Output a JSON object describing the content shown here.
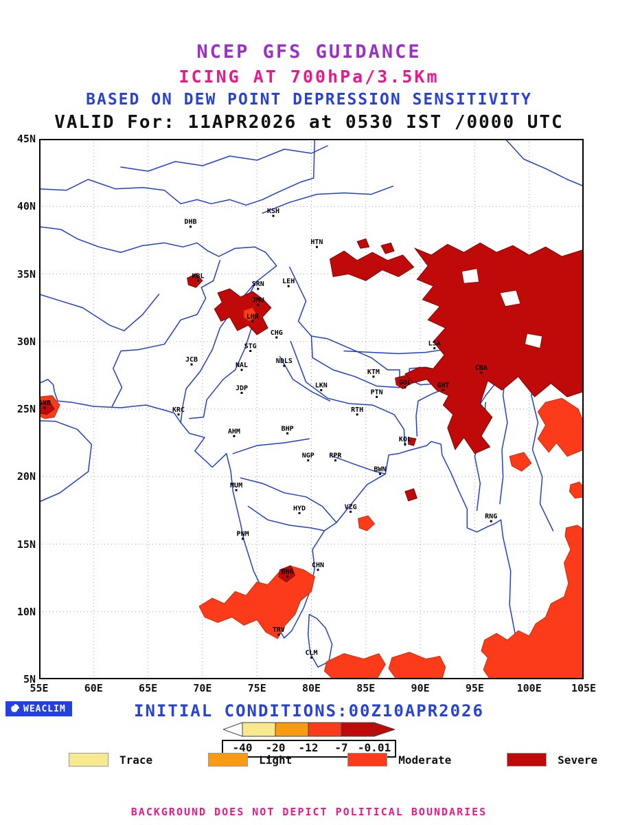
{
  "titles": {
    "line1": "NCEP GFS GUIDANCE",
    "line2": "ICING AT 700hPa/3.5Km",
    "line3": "BASED ON DEW POINT DEPRESSION SENSITIVITY",
    "line4": "VALID For: 11APR2026 at 0530 IST /0000 UTC"
  },
  "map": {
    "x_ticks": [
      "55E",
      "60E",
      "65E",
      "70E",
      "75E",
      "80E",
      "85E",
      "90E",
      "95E",
      "100E",
      "105E"
    ],
    "y_ticks": [
      "45N",
      "40N",
      "35N",
      "30N",
      "25N",
      "20N",
      "15N",
      "10N",
      "5N"
    ],
    "lon_range": [
      55,
      105
    ],
    "lat_range": [
      5,
      45
    ],
    "cities": [
      {
        "code": "DHB",
        "lon": 68.9,
        "lat": 38.5
      },
      {
        "code": "KSH",
        "lon": 76.5,
        "lat": 39.3
      },
      {
        "code": "HTN",
        "lon": 80.5,
        "lat": 37.0
      },
      {
        "code": "KBL",
        "lon": 69.6,
        "lat": 34.5
      },
      {
        "code": "SRN",
        "lon": 75.1,
        "lat": 33.9
      },
      {
        "code": "LEH",
        "lon": 77.9,
        "lat": 34.1
      },
      {
        "code": "JMU",
        "lon": 75.1,
        "lat": 32.7
      },
      {
        "code": "LHR",
        "lon": 74.6,
        "lat": 31.5
      },
      {
        "code": "CHG",
        "lon": 76.8,
        "lat": 30.3
      },
      {
        "code": "STG",
        "lon": 74.4,
        "lat": 29.3
      },
      {
        "code": "JCB",
        "lon": 69.0,
        "lat": 28.3
      },
      {
        "code": "NAL",
        "lon": 73.6,
        "lat": 27.9
      },
      {
        "code": "NDLS",
        "lon": 77.5,
        "lat": 28.2
      },
      {
        "code": "JDP",
        "lon": 73.6,
        "lat": 26.2
      },
      {
        "code": "LKN",
        "lon": 80.9,
        "lat": 26.4
      },
      {
        "code": "KTM",
        "lon": 85.7,
        "lat": 27.4
      },
      {
        "code": "KRC",
        "lon": 67.8,
        "lat": 24.6
      },
      {
        "code": "RTH",
        "lon": 84.2,
        "lat": 24.6
      },
      {
        "code": "PTN",
        "lon": 86.0,
        "lat": 25.9
      },
      {
        "code": "AHM",
        "lon": 72.9,
        "lat": 23.0
      },
      {
        "code": "BHP",
        "lon": 77.8,
        "lat": 23.2
      },
      {
        "code": "GOL",
        "lon": 88.6,
        "lat": 26.6
      },
      {
        "code": "GHT",
        "lon": 92.1,
        "lat": 26.4
      },
      {
        "code": "CBA",
        "lon": 95.6,
        "lat": 27.7
      },
      {
        "code": "LSA",
        "lon": 91.3,
        "lat": 29.5
      },
      {
        "code": "KOL",
        "lon": 88.6,
        "lat": 22.4
      },
      {
        "code": "NGP",
        "lon": 79.7,
        "lat": 21.2
      },
      {
        "code": "RPR",
        "lon": 82.2,
        "lat": 21.2
      },
      {
        "code": "BWN",
        "lon": 86.3,
        "lat": 20.2
      },
      {
        "code": "MUM",
        "lon": 73.1,
        "lat": 19.0
      },
      {
        "code": "HYD",
        "lon": 78.9,
        "lat": 17.3
      },
      {
        "code": "VZG",
        "lon": 83.6,
        "lat": 17.4
      },
      {
        "code": "PNM",
        "lon": 73.7,
        "lat": 15.4
      },
      {
        "code": "BNG",
        "lon": 77.8,
        "lat": 12.6
      },
      {
        "code": "CHN",
        "lon": 80.6,
        "lat": 13.1
      },
      {
        "code": "TRV",
        "lon": 77.0,
        "lat": 8.3
      },
      {
        "code": "CLM",
        "lon": 80.0,
        "lat": 6.6
      },
      {
        "code": "RNG",
        "lon": 96.5,
        "lat": 16.7
      },
      {
        "code": "DXB",
        "lon": 55.5,
        "lat": 25.1
      }
    ]
  },
  "legend": {
    "items": [
      {
        "label": "Trace",
        "color": "#f7e98e"
      },
      {
        "label": "Light",
        "color": "#f79b12"
      },
      {
        "label": "Moderate",
        "color": "#fb3b1a"
      },
      {
        "label": "Severe",
        "color": "#c00a0a"
      }
    ]
  },
  "footer": {
    "logo": "WEACLIM",
    "initial_conditions": "INITIAL CONDITIONS:00Z10APR2026",
    "scale_values": [
      "-40",
      "-20",
      "-12",
      "-7",
      "-0.01"
    ],
    "disclaimer": "BACKGROUND DOES NOT DEPICT POLITICAL BOUNDARIES"
  },
  "chart_data": {
    "type": "heatmap",
    "title": "NCEP GFS GUIDANCE - ICING AT 700hPa/3.5Km",
    "subtitle": "BASED ON DEW POINT DEPRESSION SENSITIVITY",
    "valid": "11APR2026 at 0530 IST /0000 UTC",
    "initial_conditions": "00Z10APR2026",
    "xlabel": "",
    "ylabel": "",
    "xlim": [
      55,
      105
    ],
    "ylim": [
      5,
      45
    ],
    "grid": true,
    "legend_position": "bottom",
    "severity_scale": {
      "boundaries": [
        -40,
        -20,
        -12,
        -7,
        -0.01
      ],
      "categories": [
        "Trace",
        "Light",
        "Moderate",
        "Severe"
      ]
    },
    "regions": [
      {
        "severity": "Moderate",
        "polygon": [
          [
            55,
            25.9
          ],
          [
            56.2,
            26.0
          ],
          [
            56.9,
            25.3
          ],
          [
            56.4,
            24.4
          ],
          [
            55.5,
            24.3
          ],
          [
            55,
            24.5
          ]
        ]
      },
      {
        "severity": "Moderate",
        "polygon": [
          [
            69.7,
            10.4
          ],
          [
            70.9,
            11.0
          ],
          [
            72.0,
            10.6
          ],
          [
            73.0,
            11.5
          ],
          [
            74.0,
            11.2
          ],
          [
            75.0,
            12.2
          ],
          [
            76.0,
            12.0
          ],
          [
            77.0,
            12.9
          ],
          [
            78.0,
            13.4
          ],
          [
            79.3,
            13.1
          ],
          [
            80.3,
            12.6
          ],
          [
            80.0,
            11.5
          ],
          [
            79.0,
            10.8
          ],
          [
            78.5,
            9.8
          ],
          [
            77.6,
            9.0
          ],
          [
            76.9,
            8.0
          ],
          [
            75.8,
            8.5
          ],
          [
            75.0,
            9.4
          ],
          [
            73.8,
            9.0
          ],
          [
            72.7,
            9.6
          ],
          [
            71.4,
            9.2
          ],
          [
            70.2,
            9.6
          ]
        ]
      },
      {
        "severity": "Moderate",
        "polygon": [
          [
            81.4,
            6.3
          ],
          [
            83.0,
            6.9
          ],
          [
            84.8,
            6.5
          ],
          [
            86.2,
            6.9
          ],
          [
            86.8,
            6.1
          ],
          [
            86.0,
            5.0
          ],
          [
            82.0,
            5.0
          ],
          [
            81.2,
            5.6
          ]
        ]
      },
      {
        "severity": "Moderate",
        "polygon": [
          [
            87.4,
            6.6
          ],
          [
            89.0,
            7.0
          ],
          [
            90.5,
            6.5
          ],
          [
            91.8,
            6.7
          ],
          [
            92.3,
            5.9
          ],
          [
            92.0,
            5.0
          ],
          [
            87.8,
            5.0
          ],
          [
            87.1,
            5.8
          ]
        ]
      },
      {
        "severity": "Moderate",
        "polygon": [
          [
            103.4,
            16.2
          ],
          [
            104.4,
            16.4
          ],
          [
            105,
            16.1
          ],
          [
            105,
            5.0
          ],
          [
            96.4,
            5.0
          ],
          [
            95.8,
            5.7
          ],
          [
            96.2,
            6.6
          ],
          [
            95.6,
            7.1
          ],
          [
            95.9,
            7.9
          ],
          [
            97.0,
            8.4
          ],
          [
            98.0,
            7.9
          ],
          [
            99.0,
            8.6
          ],
          [
            100.0,
            8.2
          ],
          [
            100.6,
            9.1
          ],
          [
            101.5,
            9.6
          ],
          [
            102.0,
            10.6
          ],
          [
            103.2,
            11.1
          ],
          [
            103.6,
            12.1
          ],
          [
            103.2,
            13.6
          ],
          [
            103.8,
            14.6
          ],
          [
            103.3,
            15.6
          ]
        ]
      },
      {
        "severity": "Moderate",
        "polygon": [
          [
            84.3,
            16.9
          ],
          [
            85.2,
            17.1
          ],
          [
            85.8,
            16.5
          ],
          [
            85.1,
            16.0
          ],
          [
            84.4,
            16.2
          ]
        ]
      },
      {
        "severity": "Moderate",
        "polygon": [
          [
            103.8,
            19.4
          ],
          [
            104.6,
            19.6
          ],
          [
            105,
            19.2
          ],
          [
            105,
            18.5
          ],
          [
            104.2,
            18.4
          ],
          [
            103.7,
            18.9
          ]
        ]
      },
      {
        "severity": "Severe",
        "polygon": [
          [
            89.5,
            36.9
          ],
          [
            91.0,
            36.4
          ],
          [
            92.5,
            37.2
          ],
          [
            94.0,
            36.6
          ],
          [
            95.5,
            37.3
          ],
          [
            97.0,
            36.6
          ],
          [
            98.5,
            37.1
          ],
          [
            100.0,
            36.4
          ],
          [
            101.5,
            37.0
          ],
          [
            103.0,
            36.3
          ],
          [
            105,
            36.8
          ],
          [
            105,
            26.3
          ],
          [
            103.5,
            25.9
          ],
          [
            102.0,
            26.9
          ],
          [
            100.5,
            25.9
          ],
          [
            99.0,
            27.4
          ],
          [
            97.5,
            26.4
          ],
          [
            96.2,
            27.1
          ],
          [
            95.5,
            25.4
          ],
          [
            96.6,
            24.4
          ],
          [
            95.6,
            23.0
          ],
          [
            96.4,
            22.2
          ],
          [
            95.0,
            21.7
          ],
          [
            94.0,
            22.9
          ],
          [
            93.2,
            22.0
          ],
          [
            92.5,
            23.6
          ],
          [
            93.0,
            24.6
          ],
          [
            92.1,
            25.3
          ],
          [
            92.6,
            26.0
          ],
          [
            91.5,
            26.4
          ],
          [
            90.6,
            27.2
          ],
          [
            89.2,
            26.9
          ],
          [
            88.6,
            27.6
          ],
          [
            89.9,
            28.1
          ],
          [
            91.2,
            28.0
          ],
          [
            92.2,
            29.0
          ],
          [
            91.2,
            30.0
          ],
          [
            92.3,
            31.0
          ],
          [
            90.7,
            31.6
          ],
          [
            91.8,
            32.6
          ],
          [
            90.2,
            33.1
          ],
          [
            91.2,
            34.1
          ],
          [
            89.7,
            34.6
          ],
          [
            90.7,
            35.6
          ]
        ]
      },
      {
        "severity": "none",
        "polygon": [
          [
            97.3,
            33.6
          ],
          [
            98.8,
            33.8
          ],
          [
            99.2,
            32.8
          ],
          [
            97.8,
            32.6
          ]
        ]
      },
      {
        "severity": "none",
        "polygon": [
          [
            99.8,
            30.6
          ],
          [
            101.2,
            30.4
          ],
          [
            101.0,
            29.5
          ],
          [
            99.6,
            29.8
          ]
        ]
      },
      {
        "severity": "none",
        "polygon": [
          [
            93.8,
            35.2
          ],
          [
            95.2,
            35.4
          ],
          [
            95.4,
            34.4
          ],
          [
            94.0,
            34.3
          ]
        ]
      },
      {
        "severity": "Moderate",
        "polygon": [
          [
            101.5,
            25.5
          ],
          [
            103.0,
            25.8
          ],
          [
            104.5,
            25.0
          ],
          [
            105,
            24.0
          ],
          [
            105,
            22.0
          ],
          [
            103.5,
            21.5
          ],
          [
            102.5,
            22.5
          ],
          [
            101.8,
            21.8
          ],
          [
            100.8,
            22.8
          ],
          [
            101.5,
            23.8
          ],
          [
            100.8,
            24.8
          ]
        ]
      },
      {
        "severity": "Moderate",
        "polygon": [
          [
            98.2,
            21.5
          ],
          [
            99.5,
            21.8
          ],
          [
            100.2,
            21.0
          ],
          [
            99.3,
            20.4
          ],
          [
            98.4,
            20.8
          ]
        ]
      },
      {
        "severity": "Severe",
        "polygon": [
          [
            81.7,
            36.1
          ],
          [
            83.0,
            36.7
          ],
          [
            84.2,
            36.0
          ],
          [
            85.6,
            36.6
          ],
          [
            87.0,
            36.0
          ],
          [
            88.4,
            36.4
          ],
          [
            89.4,
            35.5
          ],
          [
            88.0,
            34.8
          ],
          [
            86.5,
            35.3
          ],
          [
            85.0,
            34.5
          ],
          [
            83.4,
            35.0
          ],
          [
            82.0,
            34.8
          ]
        ]
      },
      {
        "severity": "Severe",
        "polygon": [
          [
            71.4,
            33.6
          ],
          [
            72.5,
            33.9
          ],
          [
            73.5,
            33.3
          ],
          [
            74.6,
            33.7
          ],
          [
            75.6,
            33.1
          ],
          [
            76.3,
            32.5
          ],
          [
            75.5,
            31.8
          ],
          [
            76.0,
            31.0
          ],
          [
            75.0,
            30.5
          ],
          [
            74.2,
            31.2
          ],
          [
            73.2,
            30.8
          ],
          [
            72.5,
            31.8
          ],
          [
            71.7,
            31.5
          ],
          [
            71.1,
            32.4
          ],
          [
            71.8,
            32.9
          ]
        ]
      },
      {
        "severity": "Moderate",
        "polygon": [
          [
            73.8,
            32.3
          ],
          [
            74.6,
            32.5
          ],
          [
            75.0,
            31.9
          ],
          [
            74.3,
            31.5
          ],
          [
            73.8,
            31.8
          ]
        ]
      },
      {
        "severity": "Severe",
        "polygon": [
          [
            68.6,
            34.7
          ],
          [
            69.4,
            35.0
          ],
          [
            70.0,
            34.5
          ],
          [
            69.4,
            34.0
          ],
          [
            68.7,
            34.2
          ]
        ]
      },
      {
        "severity": "Severe",
        "polygon": [
          [
            55,
            25.4
          ],
          [
            55.9,
            25.6
          ],
          [
            56.4,
            25.0
          ],
          [
            55.7,
            24.6
          ],
          [
            55,
            24.7
          ]
        ]
      },
      {
        "severity": "Severe",
        "polygon": [
          [
            87.7,
            27.3
          ],
          [
            88.7,
            27.5
          ],
          [
            89.3,
            27.0
          ],
          [
            88.4,
            26.5
          ],
          [
            87.8,
            26.8
          ]
        ]
      },
      {
        "severity": "Severe",
        "polygon": [
          [
            88.6,
            18.9
          ],
          [
            89.4,
            19.1
          ],
          [
            89.7,
            18.4
          ],
          [
            88.9,
            18.2
          ]
        ]
      },
      {
        "severity": "Severe",
        "polygon": [
          [
            88.9,
            22.9
          ],
          [
            89.6,
            22.8
          ],
          [
            89.4,
            22.3
          ],
          [
            88.9,
            22.4
          ]
        ]
      },
      {
        "severity": "Severe",
        "polygon": [
          [
            77.1,
            13.1
          ],
          [
            78.1,
            13.4
          ],
          [
            78.5,
            12.7
          ],
          [
            77.7,
            12.2
          ],
          [
            77.0,
            12.6
          ]
        ]
      },
      {
        "severity": "Severe",
        "polygon": [
          [
            86.4,
            37.1
          ],
          [
            87.3,
            37.3
          ],
          [
            87.6,
            36.7
          ],
          [
            86.8,
            36.5
          ]
        ]
      },
      {
        "severity": "Severe",
        "polygon": [
          [
            84.2,
            37.4
          ],
          [
            85.0,
            37.6
          ],
          [
            85.3,
            37.0
          ],
          [
            84.5,
            36.9
          ]
        ]
      }
    ]
  }
}
